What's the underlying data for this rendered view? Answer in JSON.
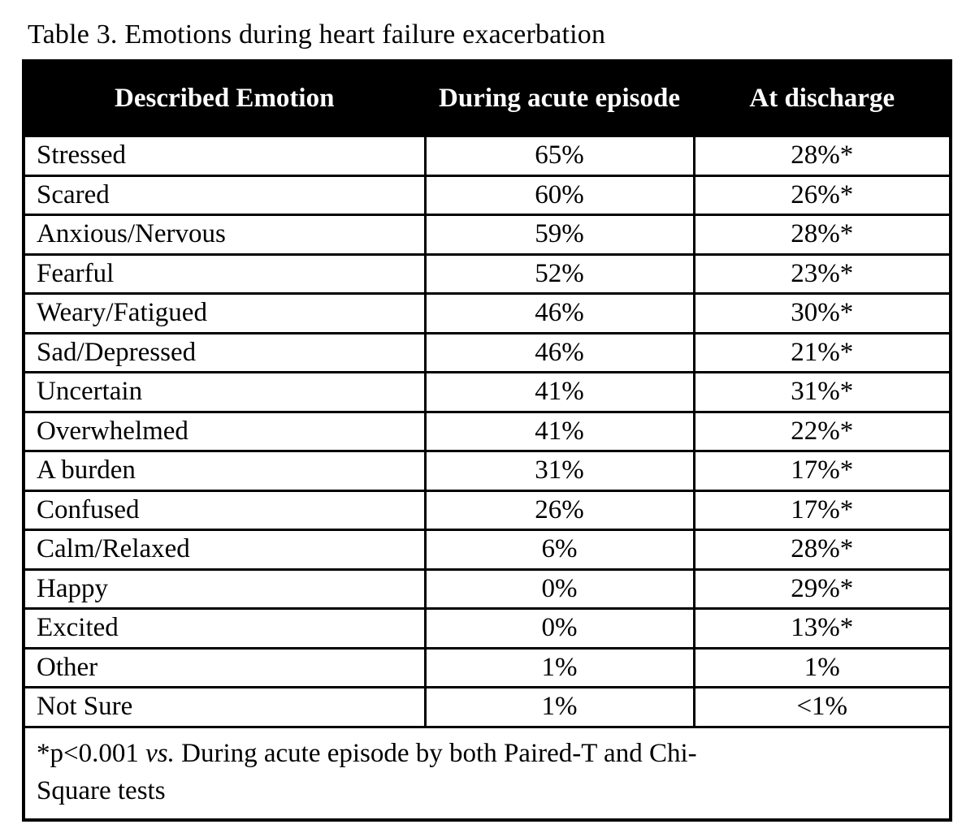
{
  "title": "Table 3. Emotions during heart failure exacerbation",
  "table": {
    "columns": {
      "emotion": "Described Emotion",
      "acute": "During acute episode",
      "discharge": "At discharge"
    },
    "rows": [
      {
        "emotion": "Stressed",
        "acute": "65%",
        "discharge": "28%*"
      },
      {
        "emotion": "Scared",
        "acute": "60%",
        "discharge": "26%*"
      },
      {
        "emotion": "Anxious/Nervous",
        "acute": "59%",
        "discharge": "28%*"
      },
      {
        "emotion": "Fearful",
        "acute": "52%",
        "discharge": "23%*"
      },
      {
        "emotion": "Weary/Fatigued",
        "acute": "46%",
        "discharge": "30%*"
      },
      {
        "emotion": "Sad/Depressed",
        "acute": "46%",
        "discharge": "21%*"
      },
      {
        "emotion": "Uncertain",
        "acute": "41%",
        "discharge": "31%*"
      },
      {
        "emotion": "Overwhelmed",
        "acute": "41%",
        "discharge": "22%*"
      },
      {
        "emotion": "A burden",
        "acute": "31%",
        "discharge": "17%*"
      },
      {
        "emotion": "Confused",
        "acute": "26%",
        "discharge": "17%*"
      },
      {
        "emotion": "Calm/Relaxed",
        "acute": "6%",
        "discharge": "28%*"
      },
      {
        "emotion": "Happy",
        "acute": "0%",
        "discharge": "29%*"
      },
      {
        "emotion": "Excited",
        "acute": "0%",
        "discharge": "13%*"
      },
      {
        "emotion": "Other",
        "acute": "1%",
        "discharge": "1%"
      },
      {
        "emotion": "Not Sure",
        "acute": "1%",
        "discharge": "<1%"
      }
    ],
    "footnote": {
      "line1_prefix": "*p<0.001 ",
      "line1_italic": "vs.",
      "line1_rest": " During acute episode by both Paired-T and Chi-",
      "line2": "Square tests"
    }
  },
  "colors": {
    "header_bg": "#000000",
    "header_text": "#ffffff",
    "body_bg": "#ffffff",
    "body_text": "#000000",
    "border": "#000000"
  },
  "chart_data": {
    "type": "table",
    "title": "Table 3. Emotions during heart failure exacerbation",
    "categories": [
      "Stressed",
      "Scared",
      "Anxious/Nervous",
      "Fearful",
      "Weary/Fatigued",
      "Sad/Depressed",
      "Uncertain",
      "Overwhelmed",
      "A burden",
      "Confused",
      "Calm/Relaxed",
      "Happy",
      "Excited",
      "Other",
      "Not Sure"
    ],
    "series": [
      {
        "name": "During acute episode",
        "values": [
          65,
          60,
          59,
          52,
          46,
          46,
          41,
          41,
          31,
          26,
          6,
          0,
          0,
          1,
          1
        ]
      },
      {
        "name": "At discharge",
        "values": [
          28,
          26,
          28,
          23,
          30,
          21,
          31,
          22,
          17,
          17,
          28,
          29,
          13,
          1,
          0.5
        ]
      }
    ],
    "note": "*p<0.001 vs. During acute episode by both Paired-T and Chi-Square tests; At discharge values marked * are significant; Not Sure at discharge is <1%"
  }
}
